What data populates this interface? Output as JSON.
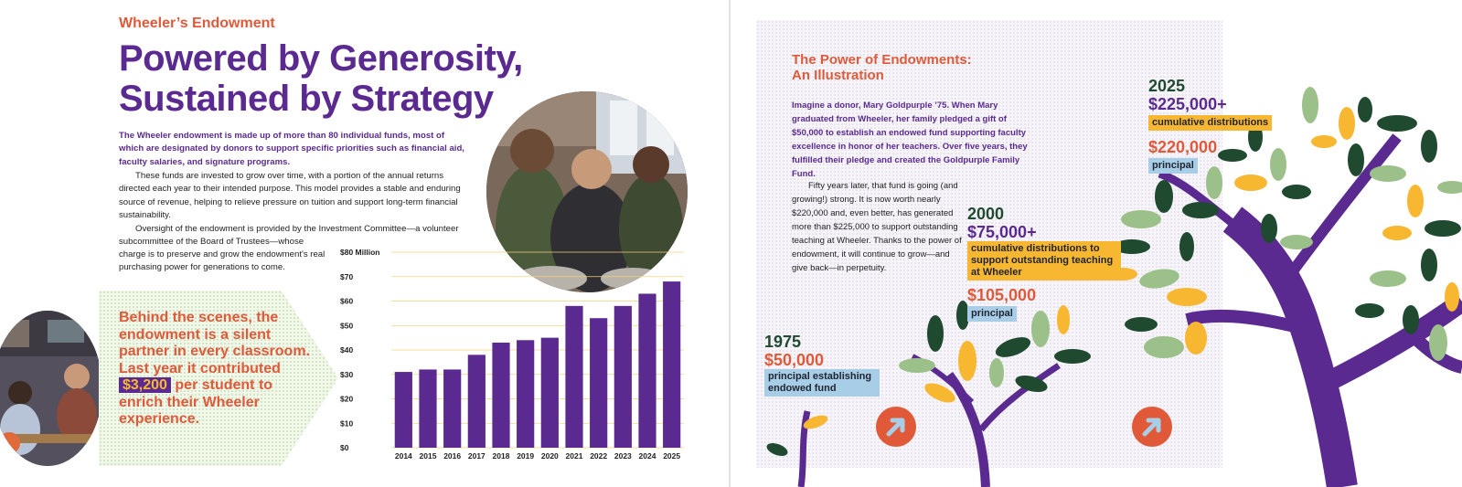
{
  "left_page": {
    "eyebrow": "Wheeler’s Endowment",
    "headline_line1": "Powered by Generosity,",
    "headline_line2": "Sustained by Strategy",
    "lead": "The Wheeler endowment is made up of more than 80 individual funds, most of which are designated by donors to support specific priorities such as financial aid, faculty salaries, and signature programs.",
    "para2": "These funds are invested to grow over time, with a portion of the annual returns directed each year to their intended purpose. This model provides a stable and enduring source of revenue, helping to relieve pressure on tuition and support long-term financial sustainability.",
    "para3a": "Oversight of the endowment is provided by the Investment Committee—a volunteer subcommittee of the Board of Trustees—whose",
    "para3b": "charge is to preserve and grow the endowment's real purchasing power for generations to come.",
    "callout_before": "Behind the scenes, the endowment is a silent partner in every classroom. Last year it contributed",
    "callout_highlight": "$3,200",
    "callout_after": "per student to enrich their Wheeler experience."
  },
  "chart_data": {
    "type": "bar",
    "categories": [
      "2014",
      "2015",
      "2016",
      "2017",
      "2018",
      "2019",
      "2020",
      "2021",
      "2022",
      "2023",
      "2024",
      "2025"
    ],
    "values": [
      31,
      32,
      32,
      38,
      43,
      44,
      45,
      58,
      53,
      58,
      63,
      68
    ],
    "y_ticks": [
      "$0",
      "$10",
      "$20",
      "$30",
      "$40",
      "$50",
      "$60",
      "$70",
      "$80 Million"
    ],
    "ylim": [
      0,
      80
    ],
    "grid": true,
    "bar_color": "#5b2a91",
    "grid_color": "#f2d27a"
  },
  "right_page": {
    "title_line1": "The Power of Endowments:",
    "title_line2": "An Illustration",
    "lead": "Imagine a donor, Mary Goldpurple ’75. When Mary graduated from Wheeler, her family pledged a gift of $50,000 to establish an endowed fund supporting faculty excellence in honor of her teachers. Over five years, they fulfilled their pledge and created the Goldpurple Family Fund.",
    "body": "Fifty years later, that fund is going (and growing!) strong. It is now worth nearly $220,000 and, even better, has generated more than $225,000 to support outstanding teaching at Wheeler. Thanks to the power of endowment, it will continue to grow—and give back—in perpetuity.",
    "milestones": [
      {
        "year": "1975",
        "amount": "$50,000",
        "label": "principal establishing endowed fund"
      },
      {
        "year": "2000",
        "distributions": "$75,000+",
        "distributions_label": "cumulative distributions to support outstanding teaching at Wheeler",
        "principal": "$105,000",
        "principal_label": "principal"
      },
      {
        "year": "2025",
        "distributions": "$225,000+",
        "distributions_label": "cumulative distributions",
        "principal": "$220,000",
        "principal_label": "principal"
      }
    ]
  },
  "colors": {
    "purple": "#5b2a91",
    "orange": "#e05a3a",
    "gold": "#f7b731",
    "green": "#1f4a2f",
    "sage": "#9cc08a",
    "light_blue": "#a8cde6"
  },
  "icons": [
    "arrow-up-right-icon",
    "tree-illustration",
    "photo-students-pottery",
    "photo-students-classroom"
  ]
}
